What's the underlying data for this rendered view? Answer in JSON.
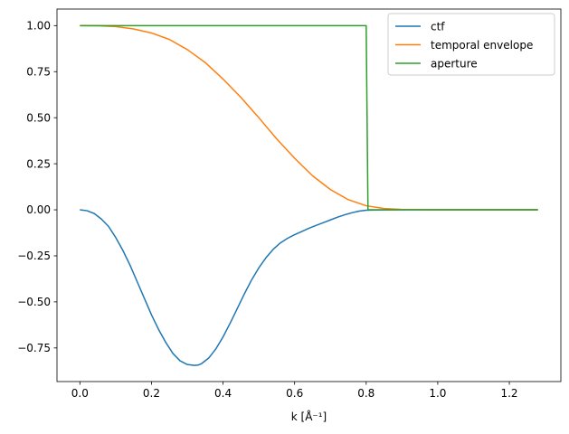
{
  "chart_data": {
    "type": "line",
    "title": "",
    "xlabel": "k [Å⁻¹]",
    "ylabel": "",
    "xlim": [
      -0.064,
      1.344
    ],
    "ylim": [
      -0.9325,
      1.09
    ],
    "grid": false,
    "legend_position": "top-right",
    "xticks": [
      {
        "value": 0.0,
        "label": "0.0"
      },
      {
        "value": 0.2,
        "label": "0.2"
      },
      {
        "value": 0.4,
        "label": "0.4"
      },
      {
        "value": 0.6,
        "label": "0.6"
      },
      {
        "value": 0.8,
        "label": "0.8"
      },
      {
        "value": 1.0,
        "label": "1.0"
      },
      {
        "value": 1.2,
        "label": "1.2"
      }
    ],
    "yticks": [
      {
        "value": 1.0,
        "label": "1.00"
      },
      {
        "value": 0.75,
        "label": "0.75"
      },
      {
        "value": 0.5,
        "label": "0.50"
      },
      {
        "value": 0.25,
        "label": "0.25"
      },
      {
        "value": 0.0,
        "label": "0.00"
      },
      {
        "value": -0.25,
        "label": "−0.25"
      },
      {
        "value": -0.5,
        "label": "−0.50"
      },
      {
        "value": -0.75,
        "label": "−0.75"
      }
    ],
    "series": [
      {
        "name": "ctf",
        "color": "#1f77b4",
        "x": [
          0.0,
          0.02,
          0.04,
          0.06,
          0.08,
          0.1,
          0.12,
          0.14,
          0.16,
          0.18,
          0.2,
          0.22,
          0.24,
          0.26,
          0.28,
          0.3,
          0.32,
          0.33,
          0.34,
          0.36,
          0.38,
          0.4,
          0.42,
          0.44,
          0.46,
          0.48,
          0.5,
          0.52,
          0.54,
          0.56,
          0.58,
          0.6,
          0.62,
          0.64,
          0.66,
          0.68,
          0.7,
          0.72,
          0.74,
          0.76,
          0.78,
          0.8,
          0.85,
          0.9,
          1.0,
          1.1,
          1.2,
          1.28
        ],
        "y": [
          0.0,
          -0.005,
          -0.02,
          -0.05,
          -0.09,
          -0.15,
          -0.22,
          -0.3,
          -0.39,
          -0.48,
          -0.57,
          -0.65,
          -0.72,
          -0.78,
          -0.82,
          -0.84,
          -0.845,
          -0.843,
          -0.835,
          -0.805,
          -0.755,
          -0.69,
          -0.615,
          -0.535,
          -0.455,
          -0.38,
          -0.315,
          -0.26,
          -0.215,
          -0.18,
          -0.155,
          -0.135,
          -0.118,
          -0.1,
          -0.085,
          -0.07,
          -0.055,
          -0.04,
          -0.027,
          -0.016,
          -0.007,
          -0.002,
          -0.0005,
          0.0,
          0.0,
          0.0,
          0.0,
          0.0
        ]
      },
      {
        "name": "temporal envelope",
        "color": "#ff7f0e",
        "x": [
          0.0,
          0.05,
          0.1,
          0.15,
          0.2,
          0.25,
          0.3,
          0.35,
          0.4,
          0.45,
          0.5,
          0.55,
          0.6,
          0.65,
          0.7,
          0.75,
          0.8,
          0.85,
          0.9,
          1.0,
          1.1,
          1.2,
          1.28
        ],
        "y": [
          1.0,
          0.999,
          0.995,
          0.982,
          0.96,
          0.925,
          0.87,
          0.8,
          0.71,
          0.61,
          0.5,
          0.385,
          0.28,
          0.185,
          0.11,
          0.055,
          0.022,
          0.007,
          0.002,
          0.0,
          0.0,
          0.0,
          0.0
        ]
      },
      {
        "name": "aperture",
        "color": "#2ca02c",
        "x": [
          0.0,
          0.8,
          0.805,
          1.28
        ],
        "y": [
          1.0,
          1.0,
          0.0,
          0.0
        ]
      }
    ]
  }
}
